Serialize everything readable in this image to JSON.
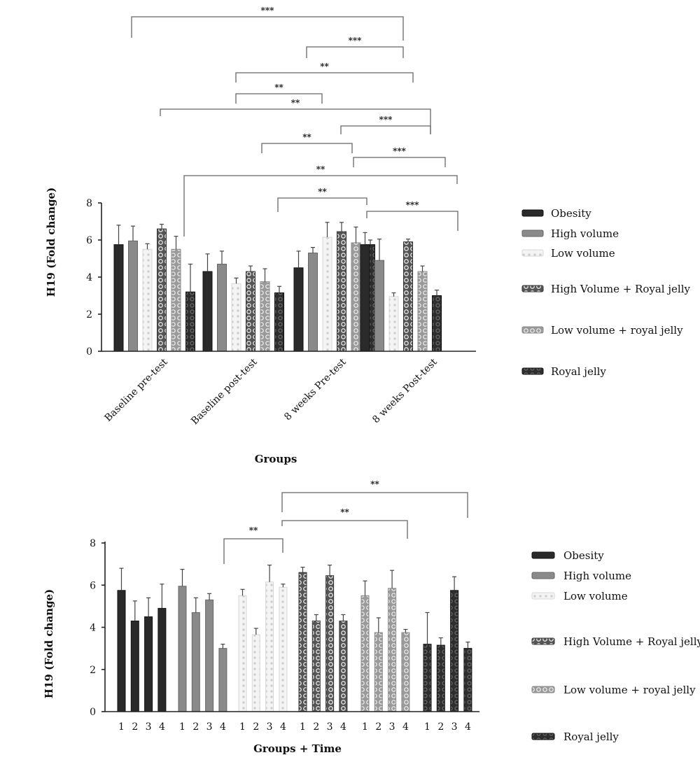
{
  "chart_data": [
    {
      "type": "bar",
      "ylabel": "H19 (Fold change)",
      "xlabel": "Groups",
      "ylim": [
        0,
        8
      ],
      "yticks": [
        0,
        2,
        4,
        6,
        8
      ],
      "categories": [
        "Baseline pre-test",
        "Baseline post-test",
        "8 weeks Pre-test",
        "8 weeks Post-test"
      ],
      "series": [
        {
          "name": "Obesity",
          "values": [
            5.75,
            4.3,
            4.5,
            5.75
          ],
          "errors": [
            1.05,
            0.95,
            0.9,
            0.65
          ]
        },
        {
          "name": "High volume",
          "values": [
            5.95,
            4.7,
            5.3,
            4.9
          ],
          "errors": [
            0.8,
            0.7,
            0.3,
            1.15
          ]
        },
        {
          "name": "Low volume",
          "values": [
            5.5,
            3.65,
            6.15,
            2.95
          ],
          "errors": [
            0.3,
            0.3,
            0.8,
            0.2
          ]
        },
        {
          "name": "High Volume + Royal jelly",
          "values": [
            6.6,
            4.3,
            6.45,
            5.9
          ],
          "errors": [
            0.25,
            0.3,
            0.5,
            0.15
          ]
        },
        {
          "name": "Low volume + royal jelly",
          "values": [
            5.5,
            3.75,
            5.85,
            4.3
          ],
          "errors": [
            0.7,
            0.7,
            0.85,
            0.3
          ]
        },
        {
          "name": "Royal jelly",
          "values": [
            3.2,
            3.15,
            5.75,
            3.0
          ],
          "errors": [
            1.5,
            0.35,
            0.25,
            0.3
          ]
        }
      ],
      "annotations": [
        "***",
        "***",
        "**",
        "**",
        "**",
        "***",
        "**",
        "***",
        "**",
        "**",
        "***"
      ],
      "legend": [
        "Obesity",
        "High volume",
        "Low volume",
        "High Volume + Royal jelly",
        "Low volume + royal jelly",
        "Royal jelly"
      ],
      "legend_position": "right",
      "grid": false
    },
    {
      "type": "bar",
      "ylabel": "H19 (Fold change)",
      "xlabel": "Groups + Time",
      "ylim": [
        0,
        8
      ],
      "yticks": [
        0,
        2,
        4,
        6,
        8
      ],
      "x_tick_labels": [
        "1",
        "2",
        "3",
        "4"
      ],
      "groups": [
        {
          "name": "Obesity",
          "values": [
            5.75,
            4.3,
            4.5,
            4.9
          ],
          "errors": [
            1.05,
            0.95,
            0.9,
            1.15
          ]
        },
        {
          "name": "High volume",
          "values": [
            5.95,
            4.7,
            5.3,
            3.0
          ],
          "errors": [
            0.8,
            0.7,
            0.3,
            0.2
          ]
        },
        {
          "name": "Low volume",
          "values": [
            5.5,
            3.65,
            6.15,
            5.9
          ],
          "errors": [
            0.3,
            0.3,
            0.8,
            0.15
          ]
        },
        {
          "name": "High Volume + Royal jelly",
          "values": [
            6.6,
            4.3,
            6.45,
            4.3
          ],
          "errors": [
            0.25,
            0.3,
            0.5,
            0.3
          ]
        },
        {
          "name": "Low volume + royal jelly",
          "values": [
            5.5,
            3.75,
            5.85,
            3.75
          ],
          "errors": [
            0.7,
            0.7,
            0.85,
            0.15
          ]
        },
        {
          "name": "Royal jelly",
          "values": [
            3.2,
            3.15,
            5.75,
            3.0
          ],
          "errors": [
            1.5,
            0.35,
            0.65,
            0.3
          ]
        }
      ],
      "annotations": [
        "**",
        "**",
        "**"
      ],
      "legend": [
        "Obesity",
        "High volume",
        "Low volume",
        "High Volume + Royal jelly",
        "Low volume + royal jelly",
        "Royal jelly"
      ],
      "legend_position": "right",
      "grid": false
    }
  ],
  "style": {
    "series_colors": [
      "#2a2a2a",
      "#8a8a8a",
      "#e6e6e6",
      "#5a5a5a",
      "#a9a9a9",
      "#3a3a3a"
    ],
    "series_patterns": [
      "solid",
      "solid",
      "dots",
      "rings",
      "rings-light",
      "dark"
    ]
  }
}
